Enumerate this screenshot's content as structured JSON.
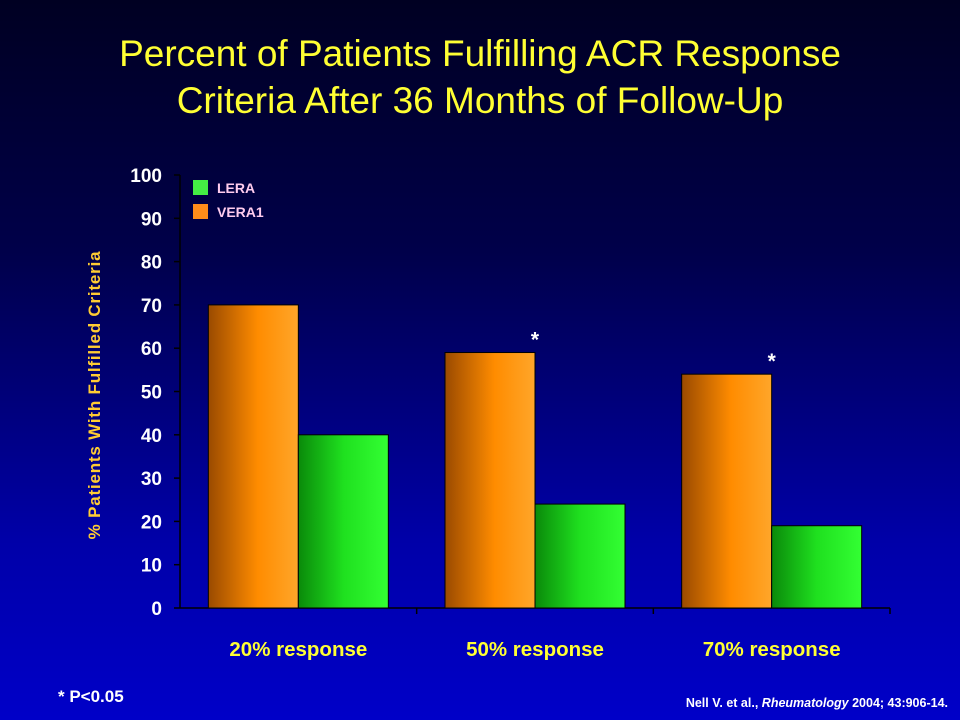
{
  "title_line1": "Percent of Patients Fulfilling ACR Response",
  "title_line2": "Criteria After 36 Months of Follow-Up",
  "footnote": "* P<0.05",
  "citation": {
    "authors": "Nell V. et al.,",
    "journal": "Rheumatology",
    "details": "2004; 43:906-14."
  },
  "chart_data": {
    "type": "bar",
    "categories": [
      "20% response",
      "50% response",
      "70% response"
    ],
    "series": [
      {
        "name": "VERA1",
        "values": [
          70,
          59,
          54
        ],
        "color": "#ff9900"
      },
      {
        "name": "LERA",
        "values": [
          40,
          24,
          19
        ],
        "color": "#22ee22"
      }
    ],
    "legend_order": [
      "LERA",
      "VERA1"
    ],
    "legend_colors": {
      "LERA": "#44ee44",
      "VERA1": "#ff8c1a"
    },
    "ylabel": "% Patients With Fulfilled Criteria",
    "ylim": [
      0,
      100
    ],
    "yticks": [
      0,
      10,
      20,
      30,
      40,
      50,
      60,
      70,
      80,
      90,
      100
    ],
    "annotations": [
      {
        "category": "50% response",
        "text": "*"
      },
      {
        "category": "70% response",
        "text": "*"
      }
    ],
    "grid": false,
    "legend_position": "top-left"
  }
}
